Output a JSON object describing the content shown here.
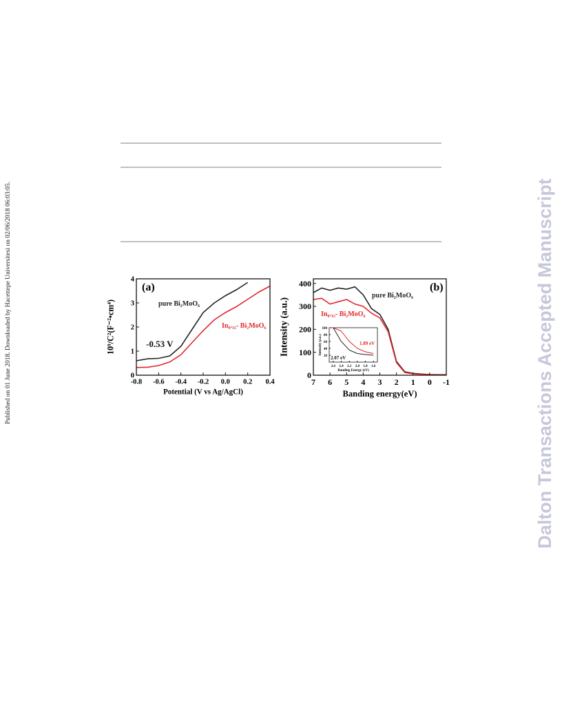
{
  "side_note": "Published on 01 June 2018. Downloaded by Hacettepe Universitesi on 02/06/2018 06:03:05.",
  "watermark": "Dalton Transactions Accepted Manuscript",
  "chart_data": [
    {
      "type": "line",
      "panel_label": "(a)",
      "x_label": "Potential (V vs Ag/AgCl)",
      "y_label": "10⁹/C²(F⁻²•cm⁴)",
      "x": [
        -0.8,
        -0.7,
        -0.6,
        -0.5,
        -0.4,
        -0.3,
        -0.2,
        -0.1,
        0,
        0.1,
        0.2,
        0.3,
        0.4
      ],
      "series": [
        {
          "name": "pure Bi₂MoO₆",
          "color": "#222222",
          "values": [
            0.6,
            0.68,
            0.7,
            0.8,
            1.2,
            1.9,
            2.6,
            3.0,
            3.3,
            3.55,
            3.85,
            null,
            null
          ]
        },
        {
          "name": "In₀.₁₅- Bi₂MoO₆",
          "color": "#e0262b",
          "values": [
            0.32,
            0.33,
            0.4,
            0.55,
            0.85,
            1.35,
            1.85,
            2.3,
            2.6,
            2.85,
            3.15,
            3.45,
            3.7
          ]
        }
      ],
      "annotations": [
        "-0.53 V"
      ],
      "xlim": [
        -0.8,
        0.4
      ],
      "xticks": [
        -0.8,
        -0.6,
        -0.4,
        -0.2,
        {
          "value": 0,
          "label": "0.0"
        },
        0.2,
        0.4
      ],
      "ylim": [
        0,
        4
      ],
      "yticks": [
        0,
        1,
        2,
        3,
        4
      ]
    },
    {
      "type": "line",
      "panel_label": "(b)",
      "x_label": "Banding energy(eV)",
      "y_label": "Intensity (a.u.)",
      "x": [
        7,
        6.5,
        6,
        5.5,
        5,
        4.5,
        4,
        3.5,
        3,
        2.5,
        2,
        1.5,
        1,
        0.5,
        0,
        -0.5,
        -1
      ],
      "series": [
        {
          "name": "pure Bi₂MoO₆",
          "color": "#222222",
          "values": [
            360,
            380,
            370,
            380,
            375,
            385,
            350,
            290,
            265,
            200,
            60,
            15,
            8,
            5,
            3,
            2,
            2
          ]
        },
        {
          "name": "In₀.₁₅- Bi₂MoO₆",
          "color": "#e0262b",
          "values": [
            330,
            335,
            310,
            320,
            330,
            310,
            300,
            270,
            250,
            190,
            55,
            12,
            6,
            4,
            2,
            1,
            1
          ]
        }
      ],
      "xlim": [
        7,
        -1
      ],
      "xticks": [
        7,
        6,
        5,
        4,
        3,
        2,
        1,
        0,
        -1
      ],
      "ylim": [
        0,
        420
      ],
      "yticks": [
        0,
        100,
        200,
        300,
        400
      ]
    },
    {
      "type": "line",
      "x_label": "Banding Energy (eV)",
      "y_label": "Intensity (a.u.)",
      "x": [
        2.6,
        2.4,
        2.2,
        2.0,
        1.8,
        1.6
      ],
      "series": [
        {
          "color": "#222222",
          "values": [
            100,
            60,
            35,
            25,
            22,
            20
          ]
        },
        {
          "color": "#e0262b",
          "values": [
            100,
            90,
            60,
            40,
            30,
            25
          ]
        }
      ],
      "annotations": [
        "2.07 eV",
        "1.89 eV"
      ],
      "xlim": [
        2.7,
        1.5
      ],
      "xticks": [
        2.6,
        2.4,
        2.2,
        {
          "value": 2.0,
          "label": "2.0"
        },
        1.8,
        1.6
      ],
      "ylim": [
        0,
        100
      ],
      "yticks": [
        20,
        40,
        60,
        80,
        100
      ]
    }
  ]
}
